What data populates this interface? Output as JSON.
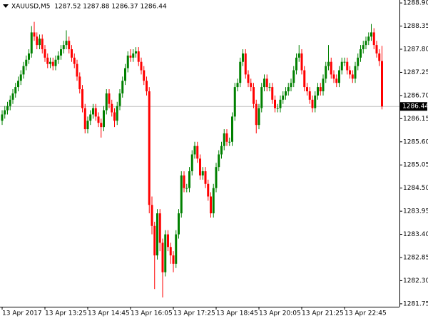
{
  "chart_data": {
    "type": "candlestick",
    "title": "XAUUSD,M5  1287.52 1287.88 1286.37 1286.44",
    "up_color": "#008000",
    "down_color": "#ff0000",
    "grid": false,
    "last_price": 1286.44,
    "last_line_color": "#c0c0c0",
    "ylim": [
      1281.68,
      1288.97
    ],
    "yticks": [
      {
        "value": 1288.9,
        "label": "1288.90"
      },
      1288.35,
      {
        "value": 1287.8,
        "label": "1287.80"
      },
      1287.25,
      {
        "value": 1286.7,
        "label": "1286.70"
      },
      1286.15,
      {
        "value": 1285.6,
        "label": "1285.60"
      },
      1285.05,
      {
        "value": 1284.5,
        "label": "1284.50"
      },
      1283.95,
      {
        "value": 1283.4,
        "label": "1283.40"
      },
      1282.85,
      {
        "value": 1282.3,
        "label": "1282.30"
      },
      1281.75
    ],
    "categories": [
      "13 Apr 2017",
      null,
      null,
      null,
      null,
      null,
      null,
      null,
      null,
      null,
      null,
      null,
      null,
      null,
      null,
      null,
      "13 Apr 13:25",
      null,
      null,
      null,
      null,
      null,
      null,
      null,
      null,
      null,
      null,
      null,
      null,
      null,
      null,
      null,
      "13 Apr 14:45",
      null,
      null,
      null,
      null,
      null,
      null,
      null,
      null,
      null,
      null,
      null,
      null,
      null,
      null,
      null,
      "13 Apr 16:05",
      null,
      null,
      null,
      null,
      null,
      null,
      null,
      null,
      null,
      null,
      null,
      null,
      null,
      null,
      null,
      "13 Apr 17:25",
      null,
      null,
      null,
      null,
      null,
      null,
      null,
      null,
      null,
      null,
      null,
      null,
      null,
      null,
      null,
      "13 Apr 18:45",
      null,
      null,
      null,
      null,
      null,
      null,
      null,
      null,
      null,
      null,
      null,
      null,
      null,
      null,
      null,
      "13 Apr 20:05",
      null,
      null,
      null,
      null,
      null,
      null,
      null,
      null,
      null,
      null,
      null,
      null,
      null,
      null,
      null,
      "13 Apr 21:25",
      null,
      null,
      null,
      null,
      null,
      null,
      null,
      null,
      null,
      null,
      null,
      null,
      null,
      null,
      null,
      "13 Apr 22:45",
      null,
      null,
      null,
      null,
      null,
      null,
      null,
      null,
      null,
      null,
      null,
      null,
      null,
      null
    ],
    "open": [
      1286.1,
      1286.25,
      1286.35,
      1286.45,
      1286.6,
      1286.75,
      1286.9,
      1287.05,
      1287.2,
      1287.4,
      1287.55,
      1287.7,
      1288.2,
      1288.1,
      1287.9,
      1288.05,
      1287.8,
      1287.6,
      1287.45,
      1287.5,
      1287.4,
      1287.55,
      1287.65,
      1287.8,
      1287.9,
      1288,
      1287.8,
      1287.6,
      1287.45,
      1287.15,
      1286.85,
      1286.4,
      1285.9,
      1286.1,
      1286.25,
      1286.4,
      1286.2,
      1286.05,
      1285.95,
      1286.35,
      1286.75,
      1286.5,
      1286.3,
      1286.1,
      1286.45,
      1286.75,
      1287.05,
      1287.35,
      1287.65,
      1287.6,
      1287.7,
      1287.75,
      1287.5,
      1287.3,
      1287.05,
      1286.8,
      1284.1,
      1283.6,
      1282.9,
      1283.9,
      1283.2,
      1282.5,
      1283.4,
      1283.1,
      1282.9,
      1282.7,
      1283.4,
      1283.9,
      1284.8,
      1284.5,
      1284.5,
      1284.9,
      1285.3,
      1285.5,
      1285.2,
      1284.8,
      1284.9,
      1284.6,
      1284.3,
      1283.9,
      1284.5,
      1285,
      1285.3,
      1285.5,
      1285.8,
      1285.6,
      1285.6,
      1286.2,
      1286.9,
      1287,
      1287.5,
      1287.7,
      1287.2,
      1287,
      1286.9,
      1286.5,
      1286,
      1286.4,
      1286.9,
      1287.1,
      1286.9,
      1286.9,
      1286.6,
      1286.4,
      1286.4,
      1286.6,
      1286.7,
      1286.8,
      1286.9,
      1287,
      1287.3,
      1287.6,
      1287.7,
      1287.3,
      1286.9,
      1286.8,
      1286.6,
      1286.4,
      1286.7,
      1286.9,
      1286.8,
      1287.1,
      1287.4,
      1287.5,
      1287.2,
      1287.1,
      1287,
      1287.3,
      1287.5,
      1287.5,
      1287.3,
      1287.2,
      1287.1,
      1287.4,
      1287.6,
      1287.8,
      1287.9,
      1288,
      1288.1,
      1288.2,
      1287.9,
      1287.7,
      1287.52
    ],
    "high": [
      1286.35,
      1286.45,
      1286.55,
      1286.7,
      1286.85,
      1287,
      1287.15,
      1287.3,
      1287.5,
      1287.65,
      1287.8,
      1288.35,
      1288.45,
      1288.2,
      1288.15,
      1288.15,
      1287.9,
      1287.7,
      1287.6,
      1287.6,
      1287.65,
      1287.75,
      1287.9,
      1288,
      1288.25,
      1288.1,
      1287.9,
      1287.7,
      1287.55,
      1287.25,
      1286.95,
      1286.5,
      1286.2,
      1286.35,
      1286.5,
      1286.5,
      1286.3,
      1286.15,
      1286.45,
      1286.85,
      1286.85,
      1286.6,
      1286.4,
      1286.55,
      1286.85,
      1287.15,
      1287.45,
      1287.75,
      1287.8,
      1287.8,
      1287.85,
      1287.85,
      1287.6,
      1287.4,
      1287.15,
      1286.9,
      1284.3,
      1283.7,
      1284,
      1284,
      1283.3,
      1283.5,
      1283.5,
      1283.2,
      1283,
      1283.5,
      1284,
      1284.9,
      1284.9,
      1284.6,
      1285,
      1285.4,
      1285.6,
      1285.6,
      1285.3,
      1285,
      1285,
      1284.7,
      1284.4,
      1284.6,
      1285.1,
      1285.4,
      1285.6,
      1285.9,
      1285.9,
      1285.7,
      1286.3,
      1287,
      1287.1,
      1287.6,
      1287.8,
      1287.8,
      1287.3,
      1287.1,
      1287,
      1286.6,
      1286.5,
      1287,
      1287.2,
      1287.2,
      1287,
      1287,
      1286.7,
      1286.5,
      1286.7,
      1286.8,
      1286.9,
      1287,
      1287.1,
      1287.4,
      1287.7,
      1287.9,
      1287.8,
      1287.4,
      1287,
      1286.9,
      1286.7,
      1286.8,
      1287,
      1287,
      1287.2,
      1287.5,
      1287.9,
      1287.6,
      1287.3,
      1287.2,
      1287.4,
      1287.6,
      1287.6,
      1287.6,
      1287.4,
      1287.3,
      1287.5,
      1287.7,
      1287.9,
      1288,
      1288.1,
      1288.2,
      1288.4,
      1288.3,
      1288,
      1287.8,
      1287.88
    ],
    "low": [
      1286,
      1286.15,
      1286.25,
      1286.35,
      1286.5,
      1286.65,
      1286.8,
      1286.95,
      1287.1,
      1287.3,
      1287.45,
      1287.6,
      1288,
      1287.8,
      1287.8,
      1287.7,
      1287.5,
      1287.35,
      1287.35,
      1287.3,
      1287.3,
      1287.45,
      1287.55,
      1287.7,
      1287.8,
      1287.7,
      1287.5,
      1287.35,
      1287.05,
      1286.75,
      1286.3,
      1285.8,
      1285.8,
      1286,
      1286.15,
      1286.1,
      1285.95,
      1285.7,
      1285.85,
      1286.25,
      1286.4,
      1286.2,
      1285.95,
      1286,
      1286.35,
      1286.65,
      1286.95,
      1287.25,
      1287.5,
      1287.5,
      1287.6,
      1287.4,
      1287.2,
      1286.95,
      1286.7,
      1283.9,
      1283.4,
      1282.1,
      1282.8,
      1283,
      1281.9,
      1282.4,
      1283,
      1282.7,
      1282.5,
      1282.6,
      1283.3,
      1283.8,
      1284.4,
      1284.4,
      1284.4,
      1284.8,
      1285.2,
      1285.1,
      1284.7,
      1284.7,
      1284.5,
      1284.2,
      1283.8,
      1283.8,
      1284.4,
      1284.9,
      1285.2,
      1285.4,
      1285.5,
      1285.5,
      1285.5,
      1286.1,
      1286.8,
      1286.9,
      1287.4,
      1287.1,
      1286.9,
      1286.8,
      1286.4,
      1285.8,
      1285.9,
      1286.3,
      1286.8,
      1286.8,
      1286.8,
      1286.5,
      1286.3,
      1286.3,
      1286.3,
      1286.5,
      1286.6,
      1286.7,
      1286.8,
      1286.9,
      1287.2,
      1287.5,
      1287.2,
      1286.8,
      1286.7,
      1286.5,
      1286.3,
      1286.3,
      1286.6,
      1286.7,
      1286.7,
      1287,
      1287.3,
      1287.1,
      1287,
      1286.9,
      1286.9,
      1287.2,
      1287.4,
      1287.2,
      1287.1,
      1287,
      1287,
      1287.3,
      1287.5,
      1287.7,
      1287.8,
      1287.9,
      1288,
      1287.8,
      1287.6,
      1287.4,
      1286.37
    ],
    "close": [
      1286.25,
      1286.35,
      1286.45,
      1286.6,
      1286.75,
      1286.9,
      1287.05,
      1287.2,
      1287.4,
      1287.55,
      1287.7,
      1288.2,
      1288.1,
      1287.9,
      1288.05,
      1287.8,
      1287.6,
      1287.45,
      1287.5,
      1287.4,
      1287.55,
      1287.65,
      1287.8,
      1287.9,
      1288,
      1287.8,
      1287.6,
      1287.45,
      1287.15,
      1286.85,
      1286.4,
      1285.9,
      1286.1,
      1286.25,
      1286.4,
      1286.2,
      1286.05,
      1285.95,
      1286.35,
      1286.75,
      1286.5,
      1286.3,
      1286.1,
      1286.45,
      1286.75,
      1287.05,
      1287.35,
      1287.65,
      1287.6,
      1287.7,
      1287.75,
      1287.5,
      1287.3,
      1287.05,
      1286.8,
      1284.1,
      1283.6,
      1282.9,
      1283.9,
      1283.2,
      1282.5,
      1283.4,
      1283.1,
      1282.9,
      1282.7,
      1283.4,
      1283.9,
      1284.8,
      1284.5,
      1284.5,
      1284.9,
      1285.3,
      1285.5,
      1285.2,
      1284.8,
      1284.9,
      1284.6,
      1284.3,
      1283.9,
      1284.5,
      1285,
      1285.3,
      1285.5,
      1285.8,
      1285.6,
      1285.6,
      1286.2,
      1286.9,
      1287,
      1287.5,
      1287.7,
      1287.2,
      1287,
      1286.9,
      1286.5,
      1286,
      1286.4,
      1286.9,
      1287.1,
      1286.9,
      1286.9,
      1286.6,
      1286.4,
      1286.4,
      1286.6,
      1286.7,
      1286.8,
      1286.9,
      1287,
      1287.3,
      1287.6,
      1287.7,
      1287.3,
      1286.9,
      1286.8,
      1286.6,
      1286.4,
      1286.7,
      1286.9,
      1286.8,
      1287.1,
      1287.4,
      1287.5,
      1287.2,
      1287.1,
      1287,
      1287.3,
      1287.5,
      1287.5,
      1287.3,
      1287.2,
      1287.1,
      1287.4,
      1287.6,
      1287.8,
      1287.9,
      1288,
      1288.1,
      1288.2,
      1287.9,
      1287.7,
      1287.52,
      1286.44
    ]
  }
}
